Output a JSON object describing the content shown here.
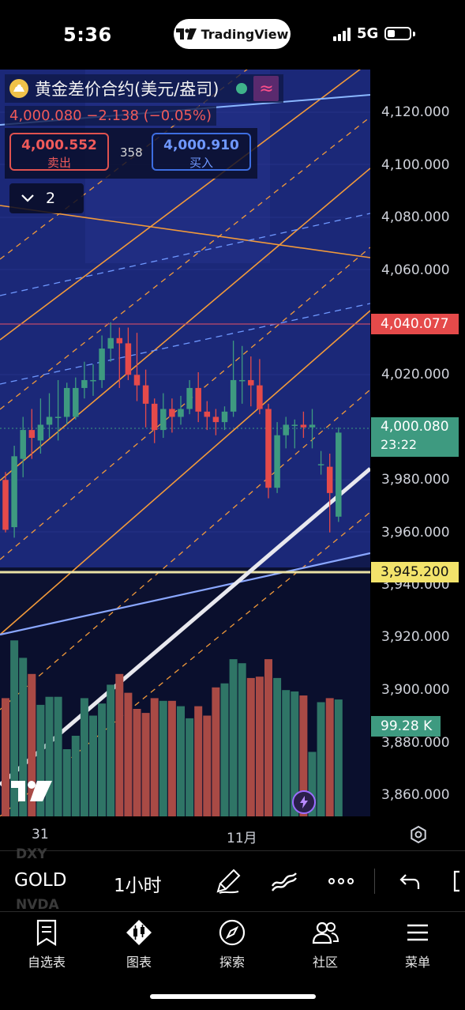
{
  "status_bar": {
    "time": "5:36",
    "app_pill": "TradingView",
    "network": "5G",
    "icons": [
      "tradingview-logo-icon",
      "signal-bars-icon",
      "battery-icon"
    ]
  },
  "header": {
    "symbol_name": "黄金差价合约(美元/盎司)",
    "change_text": "4,000.080  −2.138 (−0.05%)",
    "sell_price": "4,000.552",
    "sell_label": "卖出",
    "spread": "358",
    "buy_price": "4,000.910",
    "buy_label": "买入",
    "indicators_count": "2",
    "icons": [
      "gold-coin-icon",
      "market-open-dot-icon",
      "wave-icon",
      "chevron-down-icon"
    ]
  },
  "price_axis": {
    "labels": [
      "4,120.000",
      "4,100.000",
      "4,080.000",
      "4,060.000",
      "4,020.000",
      "3,980.000",
      "3,960.000",
      "3,940.000",
      "3,920.000",
      "3,900.000",
      "3,880.000",
      "3,860.000"
    ],
    "marker_red": "4,040.077",
    "marker_current_price": "4,000.080",
    "marker_current_countdown": "23:22",
    "marker_yellow": "3,945.200",
    "volume_value": "99.28 K"
  },
  "time_axis": {
    "labels": [
      "31",
      "11月"
    ]
  },
  "toolbar": {
    "symbol": "GOLD",
    "timeframe": "1小时",
    "ghost_above": "DXY",
    "ghost_below": "NVDA",
    "icons": [
      "brush-icon",
      "indicators-icon",
      "more-icon",
      "undo-icon",
      "fullscreen-icon"
    ]
  },
  "tabs": [
    {
      "label": "自选表",
      "icon": "watchlist-icon"
    },
    {
      "label": "图表",
      "icon": "chart-icon"
    },
    {
      "label": "探索",
      "icon": "compass-icon"
    },
    {
      "label": "社区",
      "icon": "community-icon"
    },
    {
      "label": "菜单",
      "icon": "menu-icon"
    }
  ],
  "colors": {
    "chart_bg": "#1b2878",
    "up": "#3e9a80",
    "down": "#e54a4a",
    "price_red": "#f05a5a",
    "accent_blue": "#3d6de0",
    "yellow_line": "#f3e36b",
    "orange_lines": "#f29a3a"
  },
  "chart_data": {
    "type": "candlestick",
    "title": "",
    "xlabel": "",
    "ylabel": "",
    "timeframe": "1小时",
    "ylim": [
      3850,
      4130
    ],
    "x_tick_labels": [
      "31",
      "11月"
    ],
    "candles": [
      {
        "o": 3980,
        "h": 3983,
        "c": 3961,
        "l": 3960
      },
      {
        "o": 3962,
        "h": 3993,
        "c": 3989,
        "l": 3958
      },
      {
        "o": 3988,
        "h": 4004,
        "c": 3999,
        "l": 3981
      },
      {
        "o": 3999,
        "h": 4007,
        "c": 3996,
        "l": 3988
      },
      {
        "o": 3995,
        "h": 4011,
        "c": 4001,
        "l": 3990
      },
      {
        "o": 4001,
        "h": 4013,
        "c": 4004,
        "l": 3996
      },
      {
        "o": 4004,
        "h": 4018,
        "c": 4004,
        "l": 3995
      },
      {
        "o": 4004,
        "h": 4017,
        "c": 4015,
        "l": 4001
      },
      {
        "o": 4004,
        "h": 4019,
        "c": 4015,
        "l": 4003
      },
      {
        "o": 4015,
        "h": 4025,
        "c": 4018,
        "l": 4011
      },
      {
        "o": 4018,
        "h": 4024,
        "c": 4018,
        "l": 4012
      },
      {
        "o": 4018,
        "h": 4035,
        "c": 4030,
        "l": 4015
      },
      {
        "o": 4030,
        "h": 4040,
        "c": 4034,
        "l": 4025
      },
      {
        "o": 4034,
        "h": 4038,
        "c": 4032,
        "l": 4015
      },
      {
        "o": 4032,
        "h": 4038,
        "c": 4020,
        "l": 4018
      },
      {
        "o": 4020,
        "h": 4036,
        "c": 4016,
        "l": 4010
      },
      {
        "o": 4016,
        "h": 4022,
        "c": 4009,
        "l": 4000
      },
      {
        "o": 4009,
        "h": 4011,
        "c": 3999,
        "l": 3994
      },
      {
        "o": 3999,
        "h": 4013,
        "c": 4007,
        "l": 3996
      },
      {
        "o": 4007,
        "h": 4011,
        "c": 4004,
        "l": 3998
      },
      {
        "o": 4004,
        "h": 4012,
        "c": 4007,
        "l": 4001
      },
      {
        "o": 4007,
        "h": 4018,
        "c": 4015,
        "l": 4005
      },
      {
        "o": 4015,
        "h": 4021,
        "c": 4006,
        "l": 4002
      },
      {
        "o": 4006,
        "h": 4010,
        "c": 4004,
        "l": 3999
      },
      {
        "o": 4004,
        "h": 4007,
        "c": 4002,
        "l": 3997
      },
      {
        "o": 4002,
        "h": 4008,
        "c": 4006,
        "l": 3999
      },
      {
        "o": 4006,
        "h": 4033,
        "c": 4018,
        "l": 4004
      },
      {
        "o": 4018,
        "h": 4031,
        "c": 4018,
        "l": 4009
      },
      {
        "o": 4018,
        "h": 4027,
        "c": 4016,
        "l": 4008
      },
      {
        "o": 4016,
        "h": 4026,
        "c": 4007,
        "l": 4005
      },
      {
        "o": 4007,
        "h": 4009,
        "c": 3977,
        "l": 3973
      },
      {
        "o": 3977,
        "h": 4002,
        "c": 3997,
        "l": 3975
      },
      {
        "o": 3997,
        "h": 4004,
        "c": 4001,
        "l": 3992
      },
      {
        "o": 4001,
        "h": 4003,
        "c": 4001,
        "l": 3992
      },
      {
        "o": 4001,
        "h": 4006,
        "c": 4000,
        "l": 3996
      },
      {
        "o": 4000,
        "h": 4007,
        "c": 4001,
        "l": 3992
      },
      {
        "o": 3986,
        "h": 3991,
        "c": 3986,
        "l": 3982
      },
      {
        "o": 3985,
        "h": 3990,
        "c": 3975,
        "l": 3960
      },
      {
        "o": 3966,
        "h": 4000,
        "c": 3998,
        "l": 3964
      }
    ],
    "volume_series": [
      0.88,
      1.31,
      1.18,
      1.06,
      0.83,
      0.89,
      0.89,
      0.5,
      0.6,
      0.88,
      0.75,
      0.84,
      0.98,
      1.06,
      0.92,
      0.8,
      0.77,
      0.88,
      0.86,
      0.86,
      0.82,
      0.73,
      0.82,
      0.75,
      0.96,
      0.99,
      1.17,
      1.14,
      1.03,
      1.04,
      1.17,
      1.03,
      0.94,
      0.93,
      0.9,
      0.48,
      0.85,
      0.88,
      0.87
    ],
    "volume_unit": "K (relative)",
    "horizontal_levels": [
      4040.077,
      3945.2
    ],
    "last_price": 4000.08
  }
}
